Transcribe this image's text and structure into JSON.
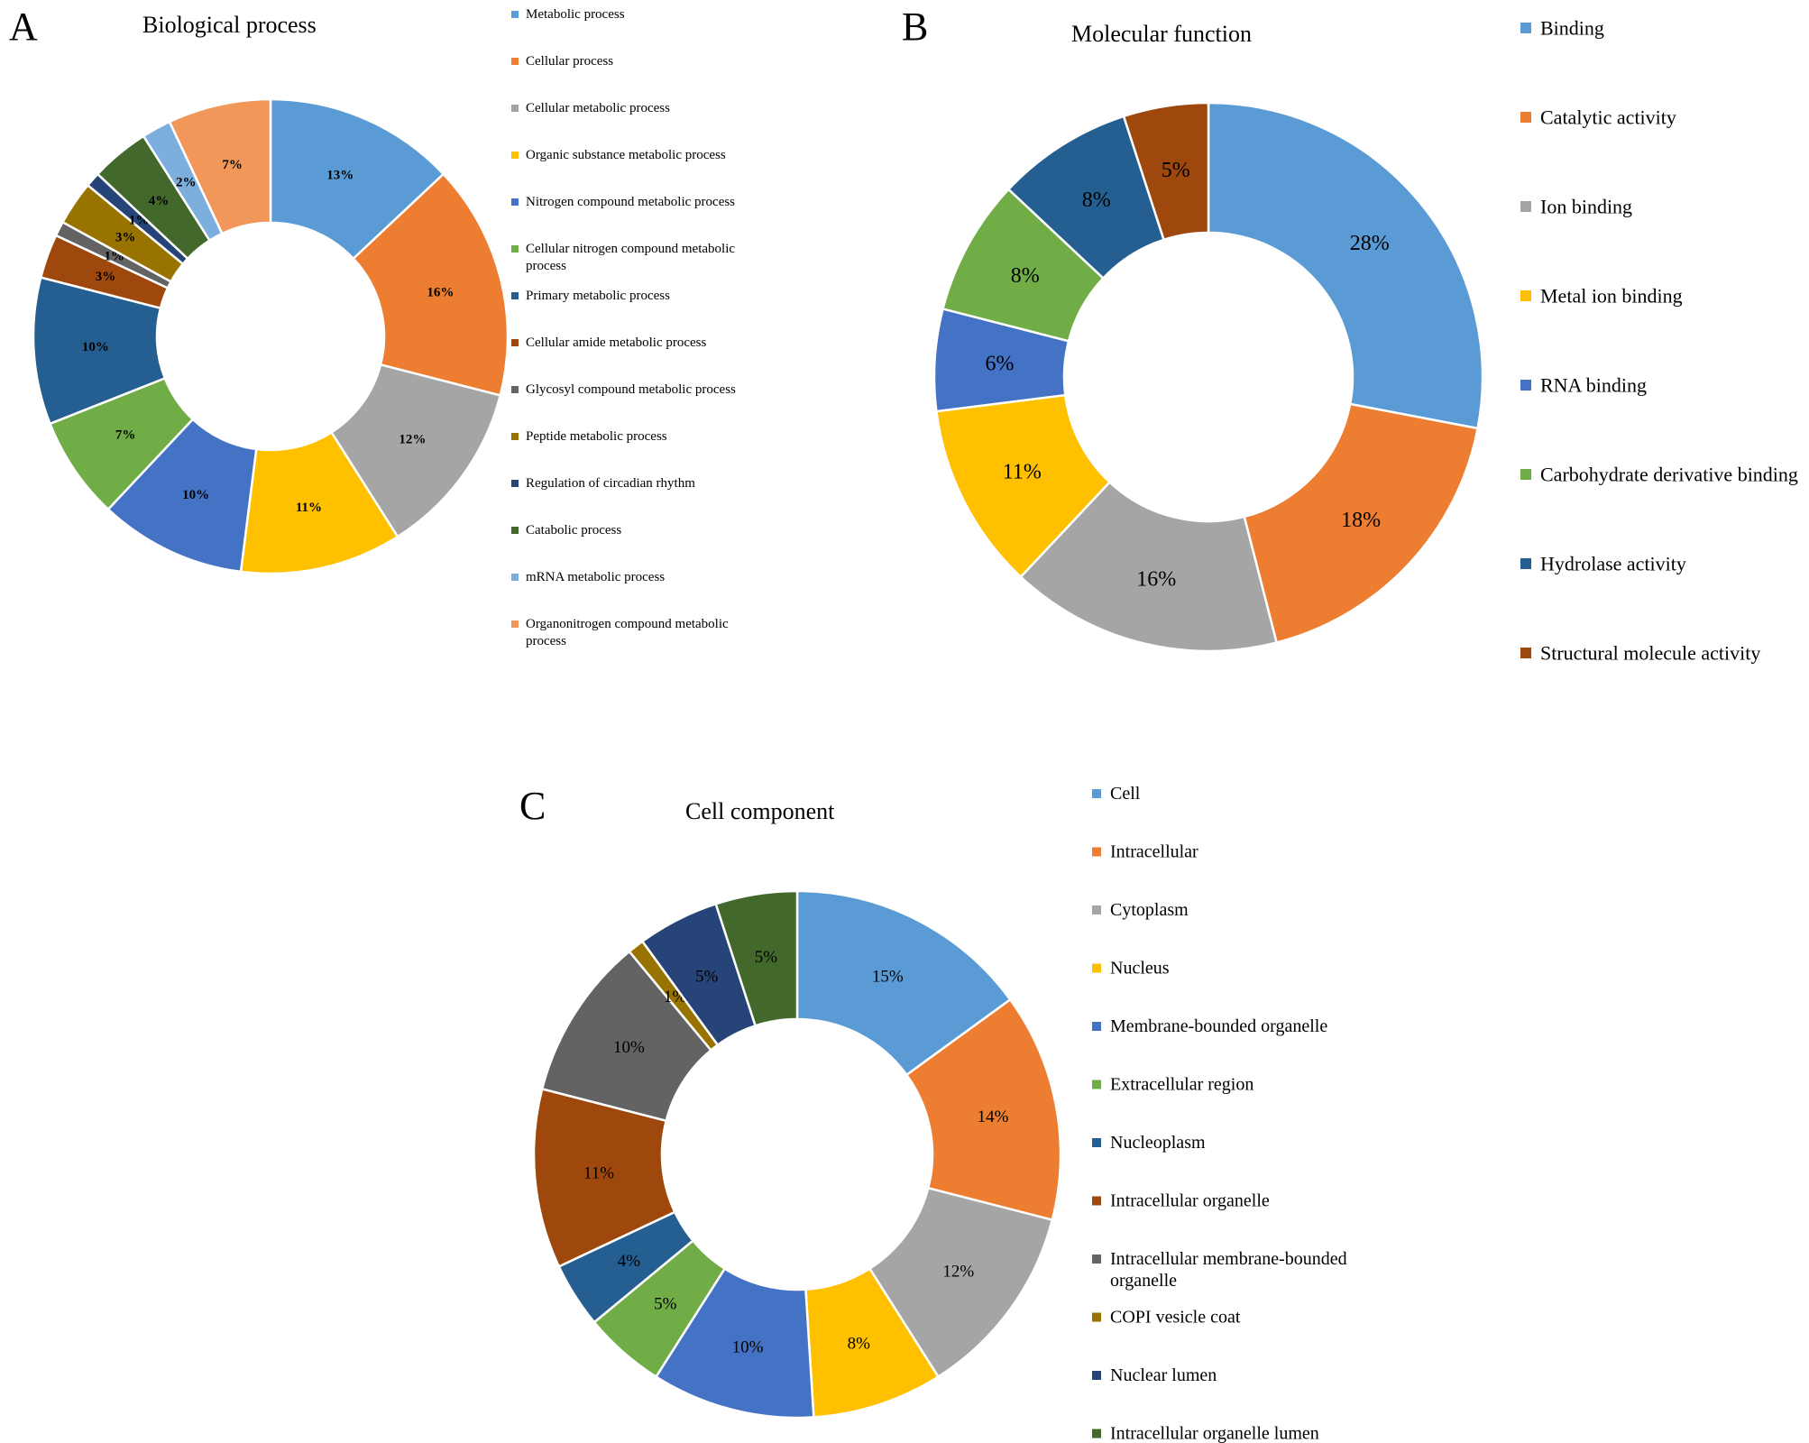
{
  "colors": [
    "#5B9BD5",
    "#ED7D31",
    "#A5A5A5",
    "#FFC000",
    "#4472C4",
    "#70AD47",
    "#255E91",
    "#9E480E",
    "#636363",
    "#997300",
    "#264478",
    "#43682B",
    "#7CAFDD",
    "#F1975A"
  ],
  "chart_data": [
    {
      "type": "pie",
      "panel": "A",
      "title": "Biological process",
      "categories": [
        "Metabolic process",
        "Cellular process",
        "Cellular metabolic process",
        "Organic substance metabolic process",
        "Nitrogen compound metabolic process",
        "Cellular nitrogen compound metabolic process",
        "Primary metabolic process",
        "Cellular amide metabolic process",
        "Glycosyl compound metabolic process",
        "Peptide metabolic process",
        "Regulation of circadian rhythm",
        "Catabolic process",
        "mRNA metabolic process",
        "Organonitrogen compound metabolic process"
      ],
      "values": [
        13,
        16,
        12,
        11,
        10,
        7,
        10,
        3,
        1,
        3,
        1,
        4,
        2,
        7
      ],
      "labels": [
        "13%",
        "16%",
        "12%",
        "11%",
        "10%",
        "7%",
        "10%",
        "3%",
        "1%",
        "3%",
        "1%",
        "4%",
        "2%",
        "7%"
      ],
      "legend": "right"
    },
    {
      "type": "pie",
      "panel": "B",
      "title": "Molecular function",
      "categories": [
        "Binding",
        "Catalytic activity",
        "Ion binding",
        "Metal ion binding",
        "RNA binding",
        "Carbohydrate derivative binding",
        "Hydrolase activity",
        "Structural molecule activity"
      ],
      "values": [
        28,
        18,
        16,
        11,
        6,
        8,
        8,
        5
      ],
      "labels": [
        "28%",
        "18%",
        "16%",
        "11%",
        "6%",
        "8%",
        "8%",
        "5%"
      ],
      "legend": "right"
    },
    {
      "type": "pie",
      "panel": "C",
      "title": "Cell component",
      "categories": [
        "Cell",
        "Intracellular",
        "Cytoplasm",
        "Nucleus",
        "Membrane-bounded organelle",
        "Extracellular region",
        "Nucleoplasm",
        "Intracellular organelle",
        "Intracellular membrane-bounded organelle",
        "COPI vesicle coat",
        "Nuclear lumen",
        "Intracellular organelle lumen"
      ],
      "values": [
        15,
        14,
        12,
        8,
        10,
        5,
        4,
        11,
        10,
        1,
        5,
        5
      ],
      "labels": [
        "15%",
        "14%",
        "12%",
        "8%",
        "10%",
        "5%",
        "4%",
        "11%",
        "10%",
        "1%",
        "5%",
        "5%"
      ],
      "legend": "right"
    }
  ]
}
